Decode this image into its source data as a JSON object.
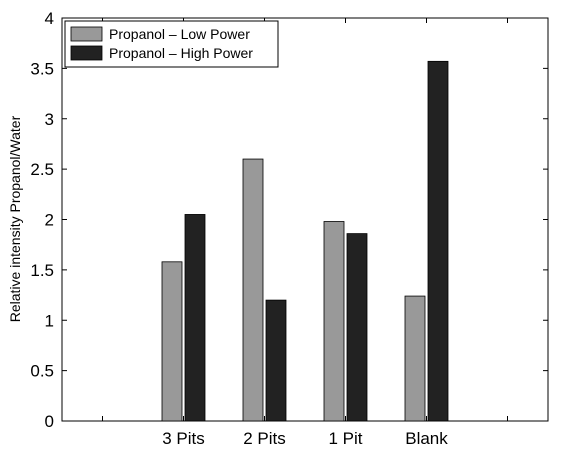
{
  "chart_data": {
    "type": "bar",
    "title": "",
    "xlabel": "",
    "ylabel": "Relative intensity Propanol/Water",
    "categories": [
      "",
      "3 Pits",
      "2 Pits",
      "1 Pit",
      "Blank",
      ""
    ],
    "series": [
      {
        "name": "Propanol – Low Power",
        "color": "#999999",
        "values": [
          null,
          1.58,
          2.6,
          1.98,
          1.24,
          null
        ]
      },
      {
        "name": "Propanol – High Power",
        "color": "#222222",
        "values": [
          null,
          2.05,
          1.2,
          1.86,
          3.57,
          null
        ]
      }
    ],
    "ylim": [
      0,
      4
    ],
    "yticks": [
      "0",
      "0.5",
      "1",
      "1.5",
      "2",
      "2.5",
      "3",
      "3.5",
      "4"
    ],
    "ytick_values": [
      0,
      0.5,
      1,
      1.5,
      2,
      2.5,
      3,
      3.5,
      4
    ],
    "grid": false,
    "legend": "top-left"
  }
}
